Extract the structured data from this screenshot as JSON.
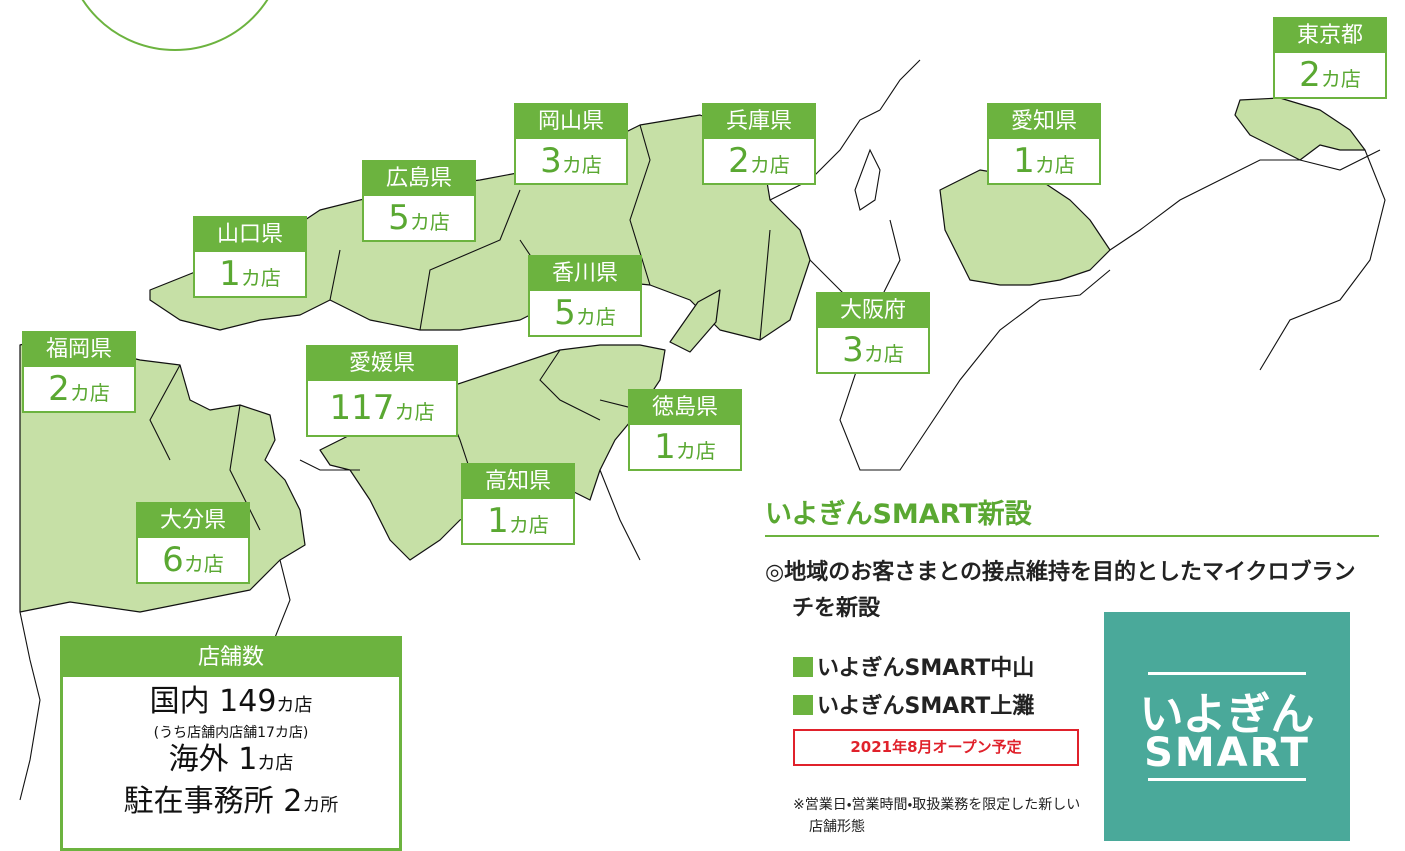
{
  "prefectures": [
    {
      "name": "東京都",
      "count": "2",
      "unit": "カ店"
    },
    {
      "name": "岡山県",
      "count": "3",
      "unit": "カ店"
    },
    {
      "name": "兵庫県",
      "count": "2",
      "unit": "カ店"
    },
    {
      "name": "愛知県",
      "count": "1",
      "unit": "カ店"
    },
    {
      "name": "広島県",
      "count": "5",
      "unit": "カ店"
    },
    {
      "name": "山口県",
      "count": "1",
      "unit": "カ店"
    },
    {
      "name": "香川県",
      "count": "5",
      "unit": "カ店"
    },
    {
      "name": "大阪府",
      "count": "3",
      "unit": "カ店"
    },
    {
      "name": "福岡県",
      "count": "2",
      "unit": "カ店"
    },
    {
      "name": "愛媛県",
      "count": "117",
      "unit": "カ店"
    },
    {
      "name": "徳島県",
      "count": "1",
      "unit": "カ店"
    },
    {
      "name": "高知県",
      "count": "1",
      "unit": "カ店"
    },
    {
      "name": "大分県",
      "count": "6",
      "unit": "カ店"
    }
  ],
  "summary": {
    "title": "店舗数",
    "domestic": {
      "label": "国内",
      "count": "149",
      "unit": "カ店"
    },
    "domestic_note": "(うち店舗内店舗17カ店)",
    "overseas": {
      "label": "海外",
      "count": "1",
      "unit": "カ店"
    },
    "offices": {
      "label": "駐在事務所",
      "count": "2",
      "unit": "カ所"
    }
  },
  "smart": {
    "title": "いよぎんSMART新設",
    "description": "◎地域のお客さまとの接点維持を目的としたマイクロブランチを新設",
    "items": [
      "いよぎんSMART中山",
      "いよぎんSMART上灘"
    ],
    "opening": "2021年8月オープン予定",
    "footnote": "※営業日・営業時間・取扱業務を限定した新しい店舗形態",
    "logo": [
      "いよぎん",
      "SMART"
    ]
  }
}
